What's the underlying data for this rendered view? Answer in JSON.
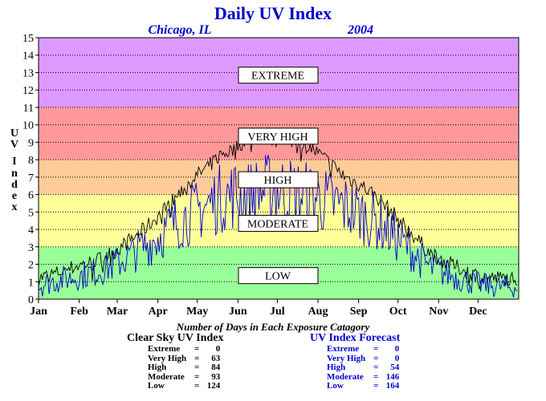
{
  "chart_data": {
    "type": "line",
    "title": "Daily UV Index",
    "subtitle_location": "Chicago, IL",
    "subtitle_year": "2004",
    "ylabel": "UV Index",
    "ylim": [
      0,
      15
    ],
    "yticks": [
      "0",
      "1",
      "2",
      "3",
      "4",
      "5",
      "6",
      "7",
      "8",
      "9",
      "10",
      "11",
      "12",
      "13",
      "14",
      "15"
    ],
    "months": [
      "Jan",
      "Feb",
      "Mar",
      "Apr",
      "May",
      "Jun",
      "Jul",
      "Aug",
      "Sep",
      "Oct",
      "Nov",
      "Dec"
    ],
    "grid": true,
    "bands": [
      {
        "name": "LOW",
        "from": 0,
        "to": 3,
        "color": "#99ff99"
      },
      {
        "name": "MODERATE",
        "from": 3,
        "to": 6,
        "color": "#ffff99"
      },
      {
        "name": "HIGH",
        "from": 6,
        "to": 8,
        "color": "#ffcc99"
      },
      {
        "name": "VERY HIGH",
        "from": 8,
        "to": 11,
        "color": "#ff9999"
      },
      {
        "name": "EXTREME",
        "from": 11,
        "to": 15,
        "color": "#dd99ff"
      }
    ],
    "series": [
      {
        "name": "Clear Sky UV Index",
        "color": "#000000",
        "x": [
          1,
          15,
          30,
          45,
          60,
          75,
          90,
          105,
          120,
          130,
          140,
          150,
          160,
          170,
          180,
          190,
          200,
          210,
          220,
          235,
          250,
          260,
          270,
          280,
          290,
          300,
          315,
          330,
          345,
          366
        ],
        "y": [
          1.2,
          1.5,
          1.9,
          2.2,
          2.8,
          3.6,
          4.6,
          5.8,
          7.0,
          7.6,
          8.3,
          8.6,
          9.2,
          9.5,
          9.4,
          9.2,
          9.0,
          8.6,
          8.0,
          7.0,
          6.4,
          5.8,
          5.0,
          4.2,
          3.4,
          2.6,
          2.0,
          1.5,
          1.2,
          1.2
        ]
      },
      {
        "name": "UV Index Forecast",
        "color": "#0000cc",
        "x": [
          1,
          15,
          30,
          45,
          60,
          75,
          90,
          105,
          120,
          130,
          140,
          150,
          160,
          170,
          180,
          190,
          200,
          210,
          220,
          235,
          250,
          260,
          270,
          280,
          290,
          300,
          315,
          330,
          345,
          366
        ],
        "y": [
          0.7,
          1.0,
          1.2,
          1.5,
          1.9,
          2.6,
          3.3,
          4.2,
          4.8,
          5.2,
          5.6,
          5.8,
          5.7,
          6.0,
          6.1,
          6.0,
          5.8,
          5.7,
          5.4,
          5.1,
          4.6,
          4.2,
          3.6,
          3.0,
          2.3,
          1.7,
          1.3,
          0.9,
          0.7,
          0.6
        ]
      }
    ],
    "band_labels": [
      "EXTREME",
      "VERY HIGH",
      "HIGH",
      "MODERATE",
      "LOW"
    ],
    "footer_title": "Number of Days in Each Exposure Catagory",
    "clear_sky_heading": "Clear Sky UV Index",
    "clear_sky_counts": [
      {
        "label": "Extreme",
        "value": "0"
      },
      {
        "label": "Very High",
        "value": "63"
      },
      {
        "label": "High",
        "value": "84"
      },
      {
        "label": "Moderate",
        "value": "93"
      },
      {
        "label": "Low",
        "value": "124"
      }
    ],
    "forecast_heading": "UV Index Forecast",
    "forecast_counts": [
      {
        "label": "Extreme",
        "value": "0"
      },
      {
        "label": "Very High",
        "value": "0"
      },
      {
        "label": "High",
        "value": "54"
      },
      {
        "label": "Moderate",
        "value": "146"
      },
      {
        "label": "Low",
        "value": "164"
      }
    ]
  }
}
